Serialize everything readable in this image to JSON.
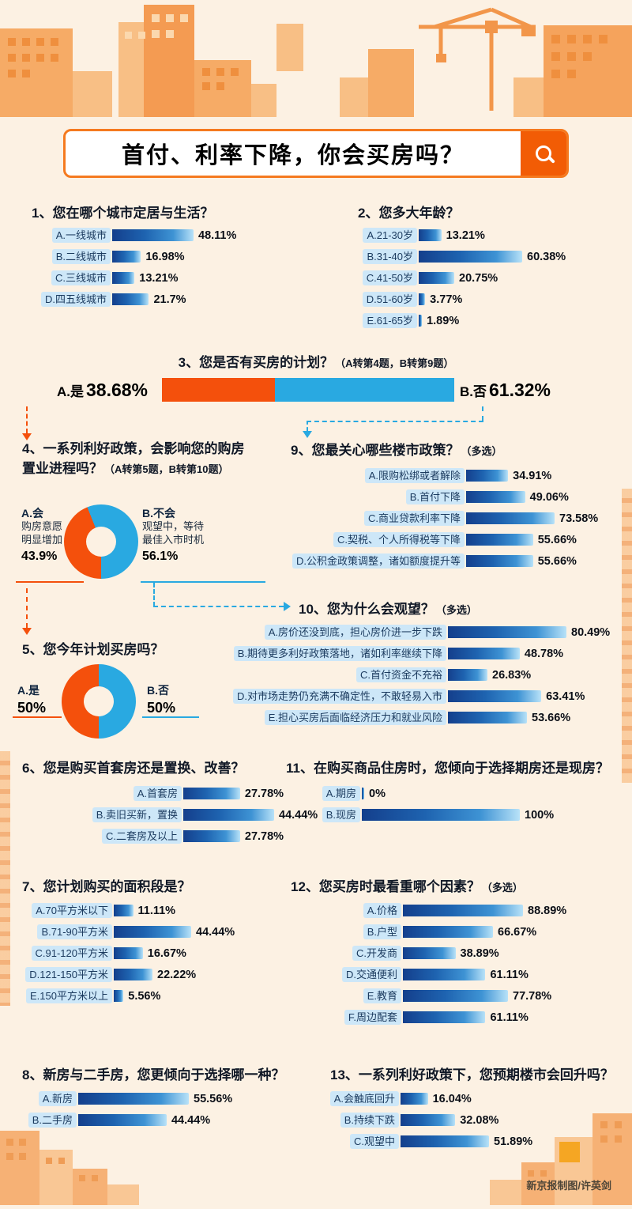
{
  "page": {
    "title": "首付、利率下降，你会买房吗？",
    "credit": "新京报制图/许英剑",
    "search_icon": "magnifier"
  },
  "colors": {
    "orange": "#f4500c",
    "blue": "#29a9e1",
    "bar_dark": "#143f8c",
    "bar_light": "#b8e2f8",
    "pill_bg": "#cde7f8",
    "background": "#fcf1e3",
    "title_border": "#f57a1f"
  },
  "chart_data": [
    {
      "id": "q1",
      "type": "bar",
      "title": "1、您在哪个城市定居与生活？",
      "categories": [
        "A.一线城市",
        "B.二线城市",
        "C.三线城市",
        "D.四五线城市"
      ],
      "values": [
        48.11,
        16.98,
        13.21,
        21.7
      ]
    },
    {
      "id": "q2",
      "type": "bar",
      "title": "2、您多大年龄？",
      "categories": [
        "A.21-30岁",
        "B.31-40岁",
        "C.41-50岁",
        "D.51-60岁",
        "E.61-65岁"
      ],
      "values": [
        13.21,
        60.38,
        20.75,
        3.77,
        1.89
      ]
    },
    {
      "id": "q3",
      "type": "stacked_bar",
      "title": "3、您是否有买房的计划？",
      "note": "（A转第4题，B转第9题）",
      "categories": [
        "A.是",
        "B.否"
      ],
      "values": [
        38.68,
        61.32
      ]
    },
    {
      "id": "q4",
      "type": "donut",
      "title": "4、一系列利好政策，会影响您的购房置业进程吗？",
      "note": "（A转第5题，B转第10题）",
      "categories": [
        "A.会",
        "B.不会"
      ],
      "values": [
        43.9,
        56.1
      ],
      "notes": [
        [
          "购房意愿",
          "明显增加"
        ],
        [
          "观望中，等待",
          "最佳入市时机"
        ]
      ]
    },
    {
      "id": "q9",
      "type": "bar",
      "title": "9、您最关心哪些楼市政策？",
      "note": "（多选）",
      "categories": [
        "A.限购松绑或者解除",
        "B.首付下降",
        "C.商业贷款利率下降",
        "C.契税、个人所得税等下降",
        "D.公积金政策调整，诸如额度提升等"
      ],
      "values": [
        34.91,
        49.06,
        73.58,
        55.66,
        55.66
      ]
    },
    {
      "id": "q10",
      "type": "bar",
      "title": "10、您为什么会观望？",
      "note": "（多选）",
      "categories": [
        "A.房价还没到底，担心房价进一步下跌",
        "B.期待更多利好政策落地，诸如利率继续下降",
        "C.首付资金不充裕",
        "D.对市场走势仍充满不确定性，不敢轻易入市",
        "E.担心买房后面临经济压力和就业风险"
      ],
      "values": [
        80.49,
        48.78,
        26.83,
        63.41,
        53.66
      ]
    },
    {
      "id": "q5",
      "type": "donut",
      "title": "5、您今年计划买房吗？",
      "categories": [
        "A.是",
        "B.否"
      ],
      "values": [
        50,
        50
      ]
    },
    {
      "id": "q6",
      "type": "bar",
      "title": "6、您是购买首套房还是置换、改善？",
      "categories": [
        "A.首套房",
        "B.卖旧买新，置换",
        "C.二套房及以上"
      ],
      "values": [
        27.78,
        44.44,
        27.78
      ]
    },
    {
      "id": "q11",
      "type": "bar",
      "title": "11、在购买商品住房时，您倾向于选择期房还是现房？",
      "categories": [
        "A.期房",
        "B.现房"
      ],
      "values": [
        0,
        100
      ]
    },
    {
      "id": "q7",
      "type": "bar",
      "title": "7、您计划购买的面积段是？",
      "categories": [
        "A.70平方米以下",
        "B.71-90平方米",
        "C.91-120平方米",
        "D.121-150平方米",
        "E.150平方米以上"
      ],
      "values": [
        11.11,
        44.44,
        16.67,
        22.22,
        5.56
      ]
    },
    {
      "id": "q12",
      "type": "bar",
      "title": "12、您买房时最看重哪个因素？",
      "note": "（多选）",
      "categories": [
        "A.价格",
        "B.户型",
        "C.开发商",
        "D.交通便利",
        "E.教育",
        "F.周边配套"
      ],
      "values": [
        88.89,
        66.67,
        38.89,
        61.11,
        77.78,
        61.11
      ]
    },
    {
      "id": "q8",
      "type": "bar",
      "title": "8、新房与二手房，您更倾向于选择哪一种？",
      "categories": [
        "A.新房",
        "B.二手房"
      ],
      "values": [
        55.56,
        44.44
      ]
    },
    {
      "id": "q13",
      "type": "bar",
      "title": "13、一系列利好政策下，您预期楼市会回升吗？",
      "categories": [
        "A.会触底回升",
        "B.持续下跌",
        "C.观望中"
      ],
      "values": [
        16.04,
        32.08,
        51.89
      ]
    }
  ]
}
